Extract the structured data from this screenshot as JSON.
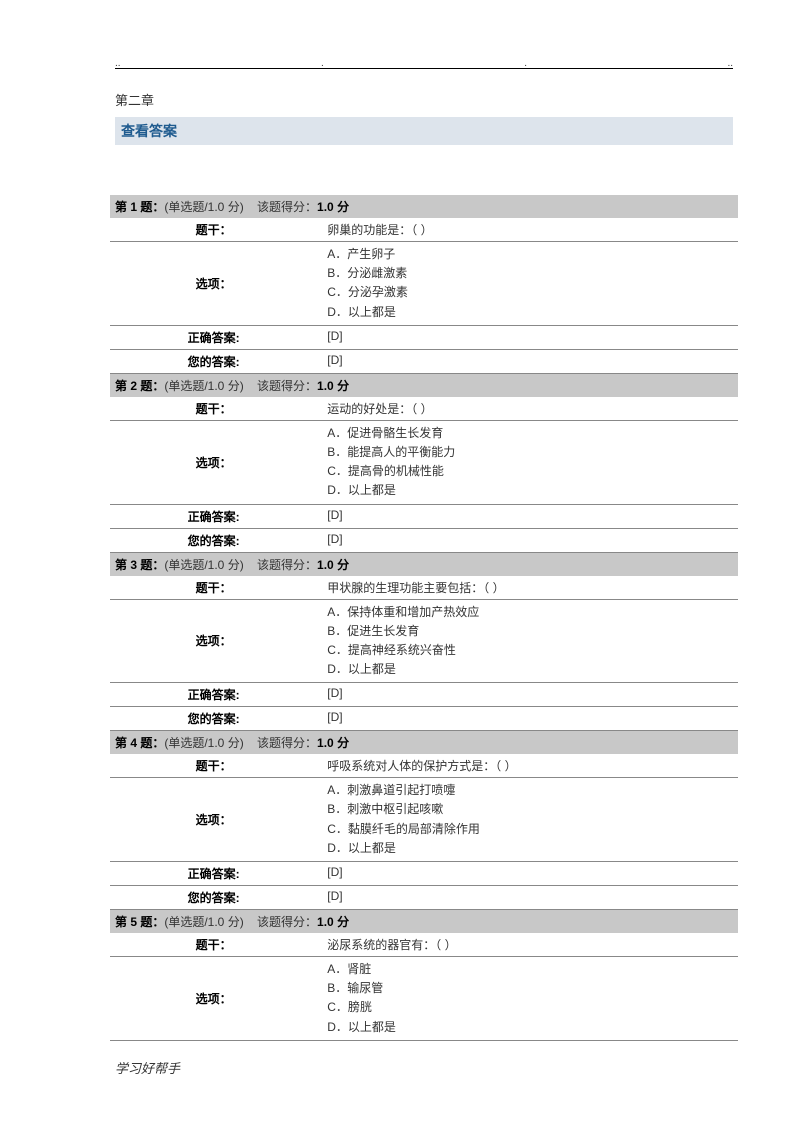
{
  "chapter_title": "第二章",
  "answer_header": "查看答案",
  "footer": "学习好帮手",
  "labels": {
    "question_stem": "题干：",
    "options": "选项：",
    "correct_answer": "正确答案:",
    "your_answer": "您的答案:",
    "question_prefix": "第",
    "question_suffix": "题：",
    "type_text": "(单选题/1.0 分)",
    "score_prefix": "该题得分：",
    "score_suffix": "分"
  },
  "colors": {
    "header_bg": "#c8c8c8",
    "answer_header_bg": "#dde4ec",
    "answer_header_text": "#1f5b8f",
    "border": "#888888",
    "text": "#333333"
  },
  "questions": [
    {
      "number": "1",
      "score": "1.0",
      "stem": "卵巢的功能是：（ ）",
      "options": [
        "A．产生卵子",
        "B．分泌雌激素",
        "C．分泌孕激素",
        "D．以上都是"
      ],
      "correct": "[D]",
      "yours": "[D]"
    },
    {
      "number": "2",
      "score": "1.0",
      "stem": "运动的好处是：（ ）",
      "options": [
        "A．促进骨骼生长发育",
        "B．能提高人的平衡能力",
        "C．提高骨的机械性能",
        "D．以上都是"
      ],
      "correct": "[D]",
      "yours": "[D]"
    },
    {
      "number": "3",
      "score": "1.0",
      "stem": "甲状腺的生理功能主要包括：（ ）",
      "options": [
        "A．保持体重和增加产热效应",
        "B．促进生长发育",
        "C．提高神经系统兴奋性",
        "D．以上都是"
      ],
      "correct": "[D]",
      "yours": "[D]"
    },
    {
      "number": "4",
      "score": "1.0",
      "stem": "呼吸系统对人体的保护方式是：（ ）",
      "options": [
        "A．刺激鼻道引起打喷嚏",
        "B．刺激中枢引起咳嗽",
        "C．黏膜纤毛的局部清除作用",
        "D．以上都是"
      ],
      "correct": "[D]",
      "yours": "[D]"
    },
    {
      "number": "5",
      "score": "1.0",
      "stem": "泌尿系统的器官有：（ ）",
      "options": [
        "A．肾脏",
        "B．输尿管",
        "C．膀胱",
        "D．以上都是"
      ],
      "correct": "",
      "yours": ""
    }
  ]
}
